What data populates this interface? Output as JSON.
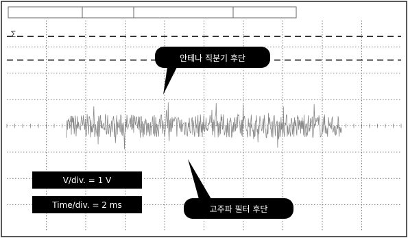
{
  "chart_data": {
    "type": "line",
    "title": "",
    "xlabel": "",
    "ylabel": "",
    "grid": true,
    "scale": {
      "v_div": "V/div. = 1 V",
      "time_div": "Time/div. = 2 ms"
    },
    "series": [
      {
        "trace": "noise-burst",
        "x_start_div": 1.5,
        "x_end_div": 8.5,
        "center_div": 0.0,
        "amplitude_div": 0.45,
        "peak_div": 0.9,
        "color": "#888888"
      }
    ],
    "reference_lines": [
      {
        "style": "dashed",
        "level_div": 3.4
      },
      {
        "style": "dashed",
        "level_div": 2.5
      }
    ],
    "annotations": [
      {
        "text": "안테나 직분기 후단"
      },
      {
        "text": "고주파 필터 후단"
      }
    ],
    "marker": "∑"
  },
  "colors": {
    "background": "#ffffff",
    "grid": "#555555",
    "trace": "#888888",
    "label_bg": "#000000",
    "label_fg": "#ffffff"
  }
}
